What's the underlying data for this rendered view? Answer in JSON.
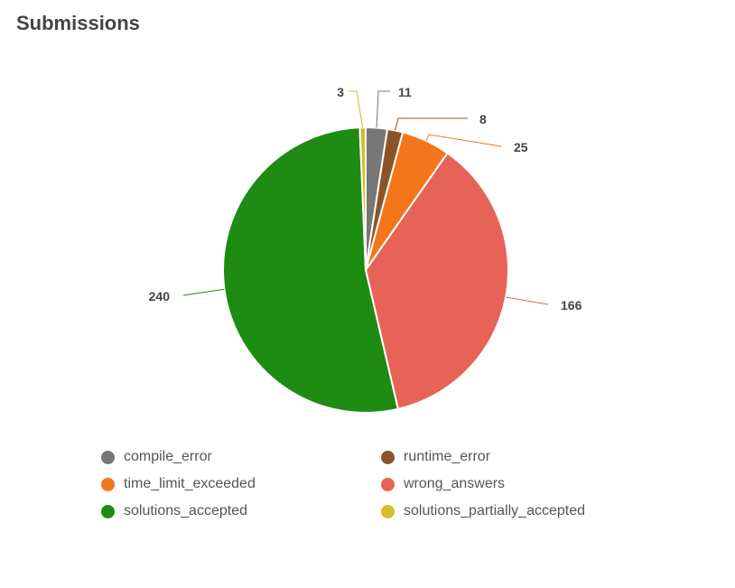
{
  "title": "Submissions",
  "chart_data": {
    "type": "pie",
    "slices": [
      {
        "name": "compile_error",
        "value": 11,
        "color": "#777777"
      },
      {
        "name": "runtime_error",
        "value": 8,
        "color": "#8B5428"
      },
      {
        "name": "time_limit_exceeded",
        "value": 25,
        "color": "#F4761B"
      },
      {
        "name": "wrong_answers",
        "value": 166,
        "color": "#E86357"
      },
      {
        "name": "solutions_accepted",
        "value": 240,
        "color": "#1E8C12"
      },
      {
        "name": "solutions_partially_accepted",
        "value": 3,
        "color": "#D7BD27"
      }
    ],
    "legend_position": "bottom"
  }
}
